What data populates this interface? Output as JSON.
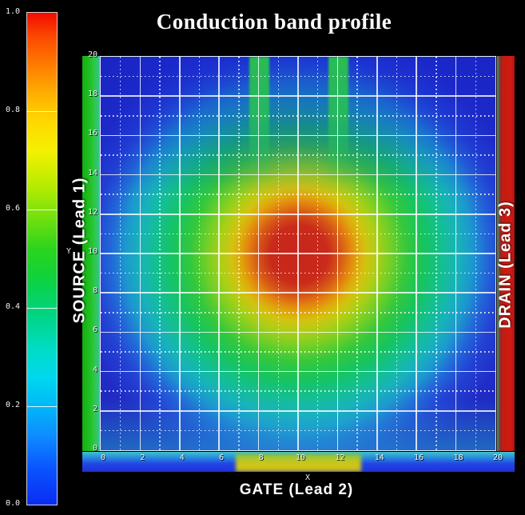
{
  "window": {
    "background": "#000000"
  },
  "colorbar": {
    "range": [
      0.0,
      1.0
    ],
    "tick_labels": [
      "1.0",
      "0.8",
      "0.6",
      "0.4",
      "0.2",
      "0.0"
    ],
    "tick_values": [
      1.0,
      0.8,
      0.6,
      0.4,
      0.2,
      0.0
    ],
    "inner_tick_values": [
      0.8,
      0.6,
      0.4,
      0.2
    ],
    "colormap": "rainbow (red=1.0 to blue=0.0)"
  },
  "chart_data": {
    "type": "heatmap",
    "title": "Conduction band profile",
    "xlabel": "X",
    "ylabel": "Y",
    "xlim": [
      0,
      20
    ],
    "ylim": [
      0,
      20
    ],
    "x_ticks": [
      0,
      2,
      4,
      6,
      8,
      10,
      12,
      14,
      16,
      18,
      20
    ],
    "y_ticks": [
      0,
      2,
      4,
      6,
      8,
      10,
      12,
      14,
      16,
      18,
      20
    ],
    "minor_ticks_every": 1,
    "grid": "major solid white, minor dotted white",
    "value_range": [
      0.0,
      1.0
    ],
    "field": {
      "description": "Smooth radial conduction-band peak centered in the device; value falls from 1.0 at center to ~0.05 (blue) at the boundary.",
      "peak": {
        "x": 10,
        "y": 10,
        "value": 1.0,
        "radius_units": 8
      },
      "background_value": 0.05,
      "barrier_stripes": [
        {
          "x_range": [
            7.5,
            8.5
          ],
          "y_range": [
            15,
            20
          ],
          "value": 0.55
        },
        {
          "x_range": [
            11.5,
            12.5
          ],
          "y_range": [
            15,
            20
          ],
          "value": 0.55
        }
      ]
    },
    "leads": [
      {
        "name": "SOURCE (Lead 1)",
        "position": "left",
        "color": "#1fc01f"
      },
      {
        "name": "GATE (Lead 2)",
        "position": "bottom",
        "color": "#c8c01c",
        "x_range": [
          7,
          13
        ]
      },
      {
        "name": "DRAIN (Lead 3)",
        "position": "right",
        "color": "#cc1a12"
      }
    ],
    "legend_position": "none",
    "colorbar_position": "left"
  }
}
